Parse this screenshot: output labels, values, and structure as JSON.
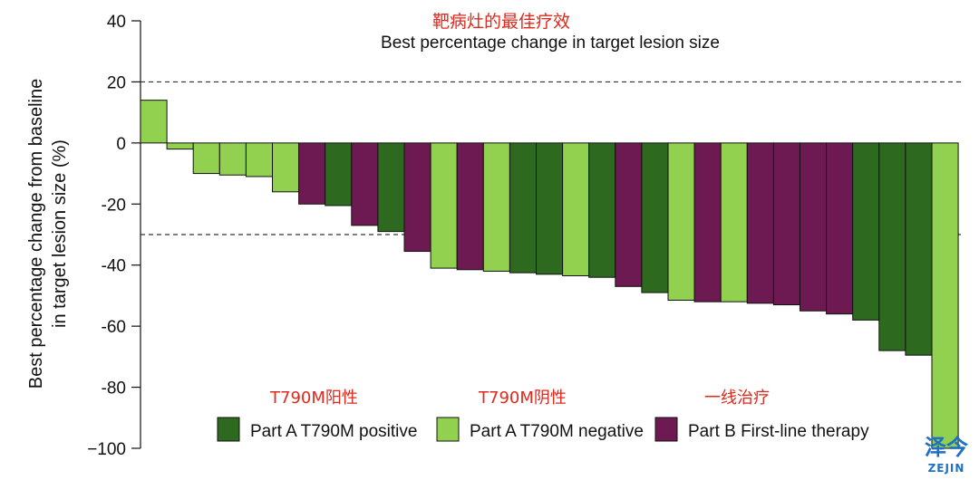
{
  "chart_data": {
    "type": "bar",
    "title_cn": "靶病灶的最佳疗效",
    "title": "Best percentage change in target lesion size",
    "ylabel_line1": "Best percentage change from baseline",
    "ylabel_line2": "in target lesion size (%)",
    "ylim": [
      -100,
      40
    ],
    "yticks": [
      40,
      20,
      0,
      -20,
      -40,
      -60,
      -80,
      -100
    ],
    "ytick_labels": [
      "40",
      "20",
      "0",
      "-20",
      "-40",
      "-60",
      "-80",
      "−100"
    ],
    "reference_lines": [
      20,
      -30
    ],
    "groups": [
      {
        "key": "pos",
        "name": "Part A T790M positive",
        "name_cn": "T790M阳性",
        "color": "#2d6a1f"
      },
      {
        "key": "neg",
        "name": "Part A T790M negative",
        "name_cn": "T790M阴性",
        "color": "#92d050"
      },
      {
        "key": "first",
        "name": "Part B First-line therapy",
        "name_cn": "一线治疗",
        "color": "#6e1a52"
      }
    ],
    "values": [
      14,
      -2,
      -10,
      -10.5,
      -11,
      -16,
      -20,
      -20.5,
      -27,
      -29,
      -35.5,
      -41,
      -41.5,
      -42,
      -42.5,
      -43,
      -43.5,
      -44,
      -47,
      -49,
      -51.5,
      -52,
      -52,
      -52.5,
      -53,
      -55,
      -56,
      -58,
      -68,
      -69.5,
      -100
    ],
    "bar_groups": [
      "neg",
      "neg",
      "neg",
      "neg",
      "neg",
      "neg",
      "first",
      "pos",
      "first",
      "pos",
      "first",
      "neg",
      "first",
      "neg",
      "pos",
      "pos",
      "neg",
      "pos",
      "first",
      "pos",
      "neg",
      "first",
      "neg",
      "first",
      "first",
      "first",
      "first",
      "pos",
      "pos",
      "pos",
      "neg"
    ]
  },
  "watermark": {
    "text_cn": "泽今",
    "text_en": "ZEJIN",
    "color": "#1f6fc2"
  }
}
